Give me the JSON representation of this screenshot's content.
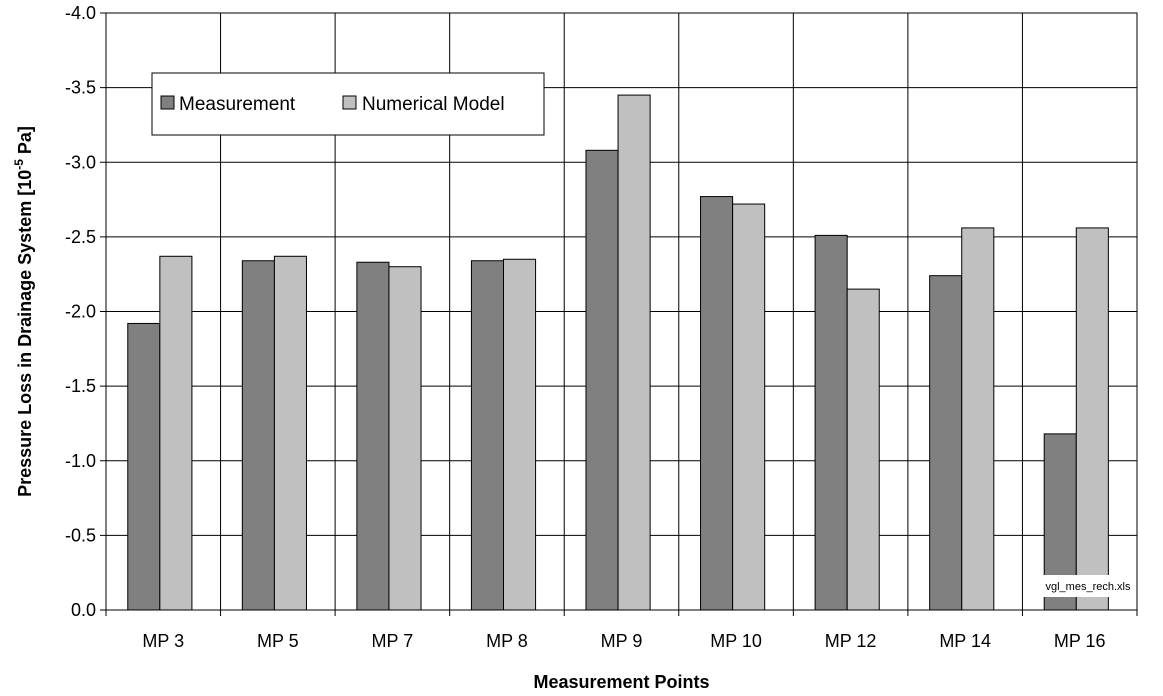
{
  "chart_data": {
    "type": "bar",
    "categories": [
      "MP 3",
      "MP 5",
      "MP 7",
      "MP 8",
      "MP 9",
      "MP 10",
      "MP 12",
      "MP 14",
      "MP 16"
    ],
    "series": [
      {
        "name": "Measurement",
        "color": "#808080",
        "values": [
          -1.92,
          -2.34,
          -2.33,
          -2.34,
          -3.08,
          -2.77,
          -2.51,
          -2.24,
          -1.18
        ]
      },
      {
        "name": "Numerical Model",
        "color": "#c0c0c0",
        "values": [
          -2.37,
          -2.37,
          -2.3,
          -2.35,
          -3.45,
          -2.72,
          -2.15,
          -2.56,
          -2.56
        ]
      }
    ],
    "xlabel": "Measurement Points",
    "ylabel_main": "Pressure Loss in Drainage System [10",
    "ylabel_sup": "-5",
    "ylabel_end": " Pa]",
    "ylim": [
      0,
      -4.0
    ],
    "yticks": [
      0,
      -0.5,
      -1.0,
      -1.5,
      -2.0,
      -2.5,
      -3.0,
      -3.5,
      -4.0
    ],
    "ytick_labels": [
      "0.0",
      "-0.5",
      "-1.0",
      "-1.5",
      "-2.0",
      "-2.5",
      "-3.0",
      "-3.5",
      "-4.0"
    ],
    "y_reversed": true,
    "grid": true,
    "legend_position": "top-left",
    "annotation": "vgl_mes_rech.xls"
  }
}
